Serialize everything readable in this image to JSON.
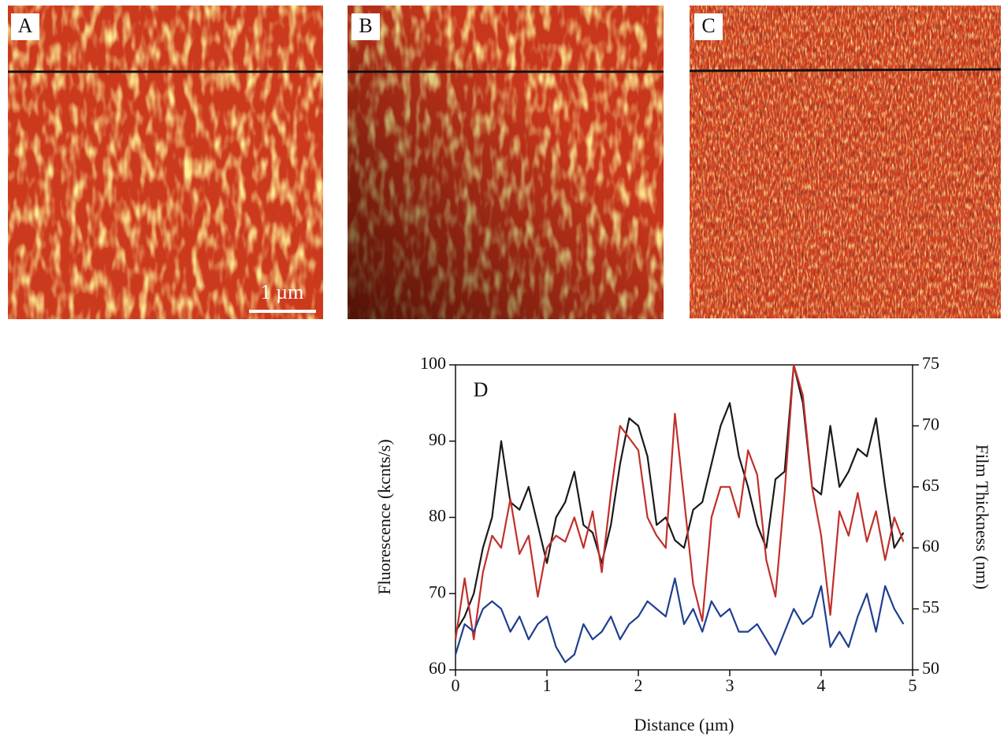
{
  "panels": [
    {
      "label": "A",
      "scale_bar": "1 µm"
    },
    {
      "label": "B"
    },
    {
      "label": "C"
    }
  ],
  "chart_data": {
    "type": "line",
    "label": "D",
    "xlabel": "Distance (µm)",
    "ylabel": "Fluorescence (kcnts/s)",
    "y2label": "Film Thickness (nm)",
    "x": [
      0,
      0.1,
      0.2,
      0.3,
      0.4,
      0.5,
      0.6,
      0.7,
      0.8,
      0.9,
      1,
      1.1,
      1.2,
      1.3,
      1.4,
      1.5,
      1.6,
      1.7,
      1.8,
      1.9,
      2,
      2.1,
      2.2,
      2.3,
      2.4,
      2.5,
      2.6,
      2.7,
      2.8,
      2.9,
      3,
      3.1,
      3.2,
      3.3,
      3.4,
      3.5,
      3.6,
      3.7,
      3.8,
      3.9,
      4,
      4.1,
      4.2,
      4.3,
      4.4,
      4.5,
      4.6,
      4.7,
      4.8,
      4.9
    ],
    "series": [
      {
        "color": "#1a1a1a",
        "values": [
          65,
          67,
          70,
          76,
          80,
          90,
          82,
          81,
          84,
          79,
          74,
          80,
          82,
          86,
          79,
          78,
          74,
          79,
          87,
          93,
          92,
          88,
          79,
          80,
          77,
          76,
          81,
          82,
          87,
          92,
          95,
          88,
          84,
          79,
          76,
          85,
          86,
          100,
          95,
          84,
          83,
          92,
          84,
          86,
          89,
          88,
          93,
          84,
          76,
          78
        ]
      },
      {
        "color": "#c0302a",
        "axis": "y2",
        "values": [
          52.5,
          57.5,
          52.5,
          58,
          61,
          60,
          64,
          59.5,
          61,
          56,
          60,
          61,
          60.5,
          62.5,
          60,
          63,
          58,
          64.5,
          70,
          69,
          68,
          62.5,
          61,
          60,
          71,
          64,
          57,
          54,
          62.5,
          65,
          65,
          62.5,
          68,
          66,
          59,
          56,
          64.5,
          75,
          72.5,
          65,
          61,
          54.5,
          63,
          61,
          64.5,
          60.5,
          63,
          59,
          62.5,
          60.5
        ]
      },
      {
        "color": "#1f3f8f",
        "values": [
          62,
          66,
          65,
          68,
          69,
          68,
          65,
          67,
          64,
          66,
          67,
          63,
          61,
          62,
          66,
          64,
          65,
          67,
          64,
          66,
          67,
          69,
          68,
          67,
          72,
          66,
          68,
          65,
          69,
          67,
          68,
          65,
          65,
          66,
          64,
          62,
          65,
          68,
          66,
          67,
          71,
          63,
          65,
          63,
          67,
          70,
          65,
          71,
          68,
          66
        ]
      }
    ],
    "xlim": [
      0,
      5
    ],
    "xticks": [
      0,
      1,
      2,
      3,
      4,
      5
    ],
    "ylim": [
      60,
      100
    ],
    "yticks": [
      60,
      70,
      80,
      90,
      100
    ],
    "y2lim": [
      50,
      75
    ],
    "y2ticks": [
      50,
      55,
      60,
      65,
      70,
      75
    ]
  }
}
